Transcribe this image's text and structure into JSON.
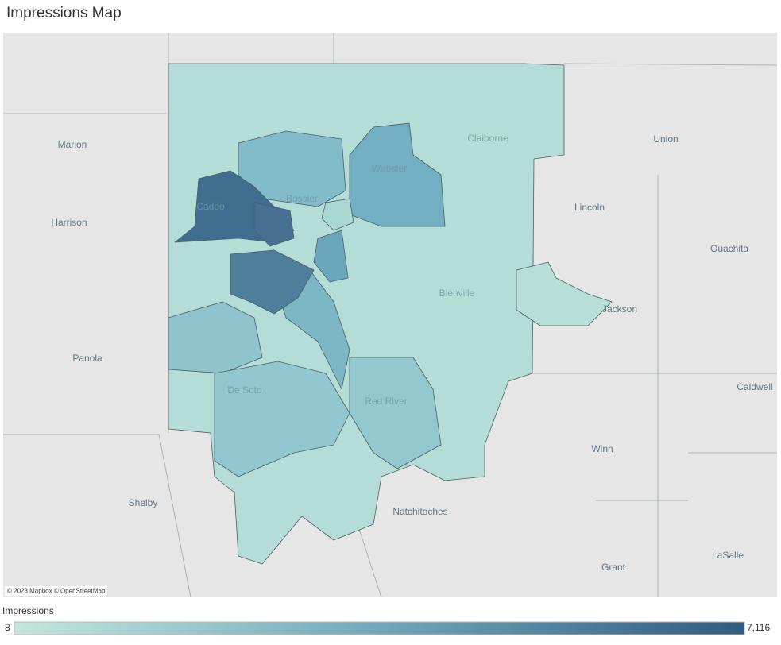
{
  "title": "Impressions Map",
  "places": [
    "Marion",
    "Harrison",
    "Panola",
    "Shelby",
    "Caddo",
    "Bossier",
    "Webster",
    "Claiborne",
    "Union",
    "Lincoln",
    "Ouachita",
    "Bienville",
    "Jackson",
    "Caldwell",
    "De Soto",
    "Red River",
    "Winn",
    "Natchitoches",
    "Grant",
    "LaSalle"
  ],
  "attribution": "© 2023 Mapbox © OpenStreetMap",
  "legend": {
    "title": "Impressions",
    "min": 8,
    "max": {
      "value": 7116,
      "label": "7,116"
    }
  }
}
